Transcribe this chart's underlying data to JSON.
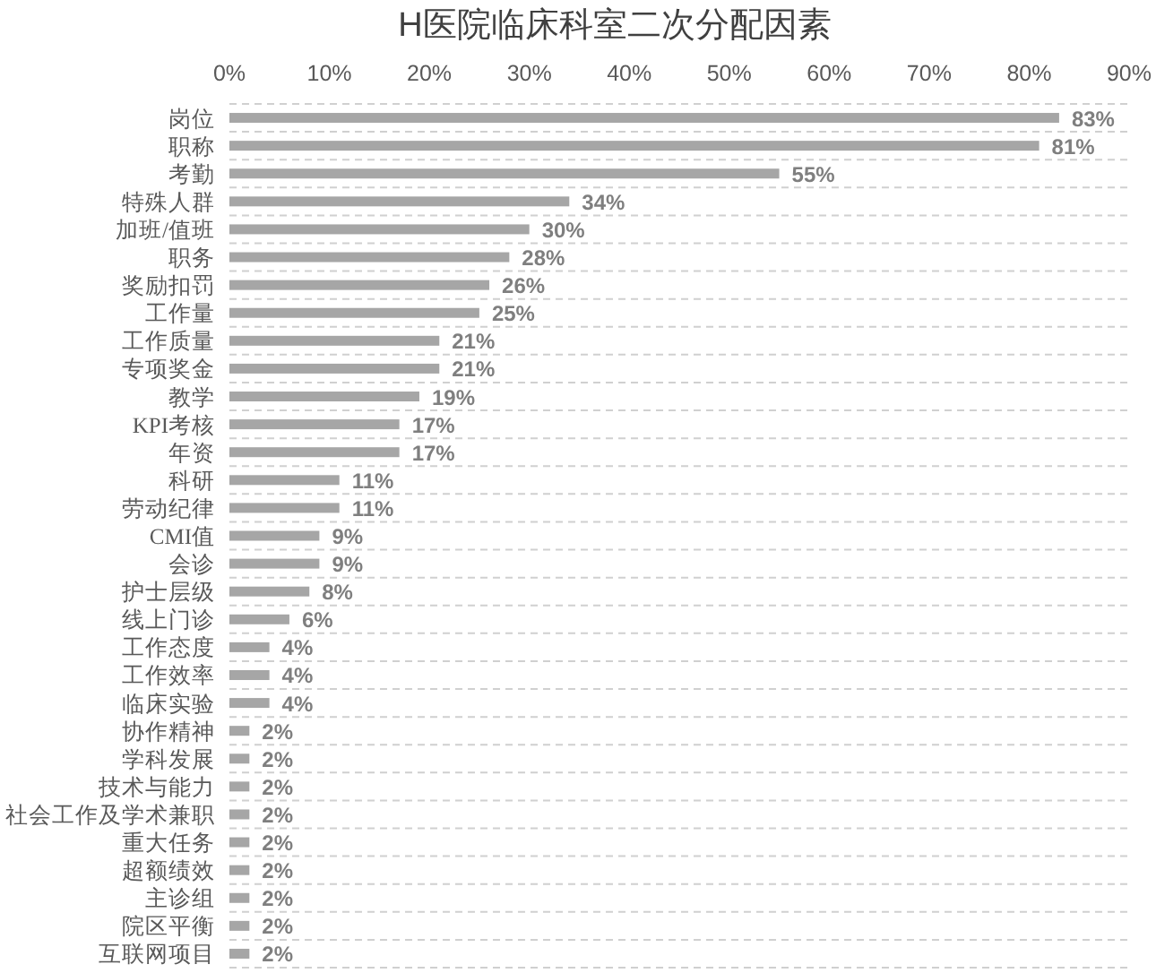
{
  "chart_data": {
    "type": "bar",
    "orientation": "horizontal",
    "title": "H医院临床科室二次分配因素",
    "categories": [
      "岗位",
      "职称",
      "考勤",
      "特殊人群",
      "加班/值班",
      "职务",
      "奖励扣罚",
      "工作量",
      "工作质量",
      "专项奖金",
      "教学",
      "KPI考核",
      "年资",
      "科研",
      "劳动纪律",
      "CMI值",
      "会诊",
      "护士层级",
      "线上门诊",
      "工作态度",
      "工作效率",
      "临床实验",
      "协作精神",
      "学科发展",
      "技术与能力",
      "社会工作及学术兼职",
      "重大任务",
      "超额绩效",
      "主诊组",
      "院区平衡",
      "互联网项目"
    ],
    "values": [
      83,
      81,
      55,
      34,
      30,
      28,
      26,
      25,
      21,
      21,
      19,
      17,
      17,
      11,
      11,
      9,
      9,
      8,
      6,
      4,
      4,
      4,
      2,
      2,
      2,
      2,
      2,
      2,
      2,
      2,
      2
    ],
    "value_labels": [
      "83%",
      "81%",
      "55%",
      "34%",
      "30%",
      "28%",
      "26%",
      "25%",
      "21%",
      "21%",
      "19%",
      "17%",
      "17%",
      "11%",
      "11%",
      "9%",
      "9%",
      "8%",
      "6%",
      "4%",
      "4%",
      "4%",
      "2%",
      "2%",
      "2%",
      "2%",
      "2%",
      "2%",
      "2%",
      "2%",
      "2%"
    ],
    "color": "#a6a6a6",
    "xlim": [
      0,
      90
    ],
    "xticks": [
      {
        "value": 0,
        "label": "0%"
      },
      {
        "value": 10,
        "label": "10%"
      },
      {
        "value": 20,
        "label": "20%"
      },
      {
        "value": 30,
        "label": "30%"
      },
      {
        "value": 40,
        "label": "40%"
      },
      {
        "value": 50,
        "label": "50%"
      },
      {
        "value": 60,
        "label": "60%"
      },
      {
        "value": 70,
        "label": "70%"
      },
      {
        "value": 80,
        "label": "80%"
      },
      {
        "value": 90,
        "label": "90%"
      }
    ],
    "grid": "y"
  }
}
